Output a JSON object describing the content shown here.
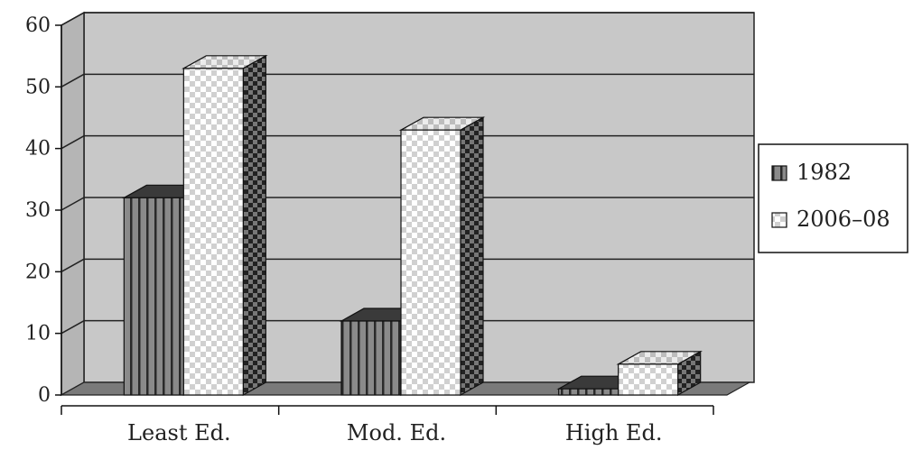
{
  "chart_data": {
    "type": "bar",
    "categories": [
      "Least Ed.",
      "Mod. Ed.",
      "High Ed."
    ],
    "series": [
      {
        "name": "1982",
        "values": [
          32,
          12,
          1
        ],
        "pattern": "vertical-stripes",
        "color": "#8c8c8c"
      },
      {
        "name": "2006–08",
        "values": [
          53,
          43,
          5
        ],
        "pattern": "checkered",
        "color": "#ffffff"
      }
    ],
    "yticks": [
      "0",
      "10",
      "20",
      "30",
      "40",
      "50",
      "60"
    ],
    "ylim": [
      0,
      60
    ],
    "grid": true,
    "legend_position": "right",
    "title": "",
    "xlabel": "",
    "ylabel": "",
    "background_color": "#c8c8c8"
  }
}
